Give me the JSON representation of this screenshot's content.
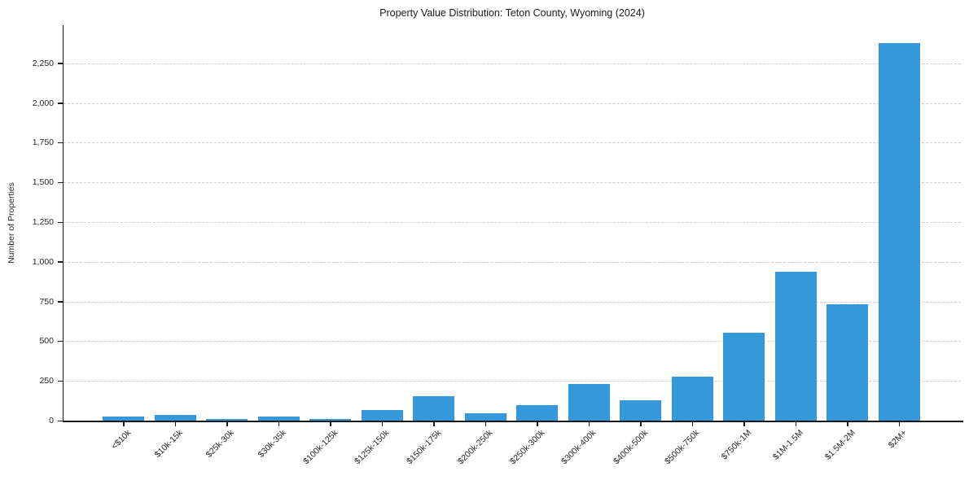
{
  "chart_data": {
    "type": "bar",
    "title": "Property Value Distribution: Teton County, Wyoming (2024)",
    "xlabel": "",
    "ylabel": "Number of Properties",
    "categories": [
      "<$10k",
      "$10k-15k",
      "$25k-30k",
      "$30k-35k",
      "$100k-125k",
      "$125k-150k",
      "$150k-175k",
      "$200k-250k",
      "$250k-300k",
      "$300k-400k",
      "$400k-500k",
      "$500k-750k",
      "$750k-1M",
      "$1M-1.5M",
      "$1.5M-2M",
      "$2M+"
    ],
    "values": [
      25,
      38,
      12,
      28,
      12,
      65,
      155,
      45,
      95,
      230,
      128,
      278,
      555,
      940,
      735,
      2375
    ],
    "yticks": [
      0,
      250,
      500,
      750,
      1000,
      1250,
      1500,
      1750,
      2000,
      2250
    ],
    "ytick_labels": [
      "0",
      "250",
      "500",
      "750",
      "1,000",
      "1,250",
      "1,500",
      "1,750",
      "2,000",
      "2,250"
    ],
    "ylim": [
      0,
      2490
    ],
    "grid": "horizontal dashed",
    "legend_position": "none",
    "bar_color": "#3498db"
  },
  "colors": {
    "background": "#ffffff",
    "bar": "#3498db",
    "gridline": "#cccccc",
    "axis": "#1a1a1a",
    "text": "#262626"
  }
}
